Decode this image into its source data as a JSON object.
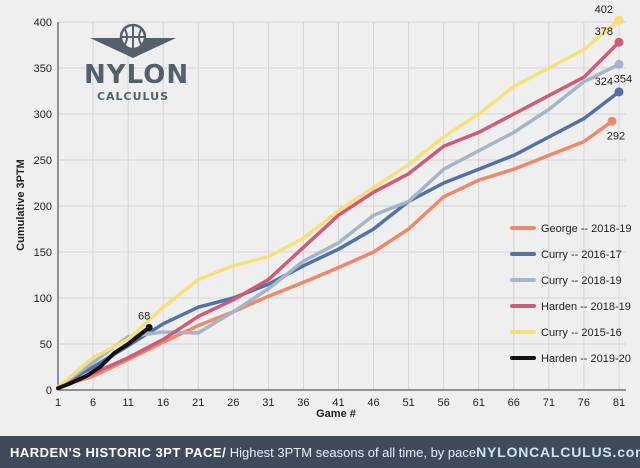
{
  "logo": {
    "line1": "NYLON",
    "line2": "CALCULUS"
  },
  "footer": {
    "headline": "HARDEN'S HISTORIC 3PT PACE",
    "separator": "/",
    "subtitle": "Highest 3PTM seasons of all time, by pace",
    "site": "NYLONCALCULUS.com"
  },
  "chart_data": {
    "type": "line",
    "title": "",
    "xlabel": "Game #",
    "ylabel": "Cumulative 3PTM",
    "xlim": [
      1,
      82
    ],
    "ylim": [
      0,
      400
    ],
    "xticks": [
      1,
      6,
      11,
      16,
      21,
      26,
      31,
      36,
      41,
      46,
      51,
      56,
      61,
      66,
      71,
      76,
      81
    ],
    "yticks": [
      0,
      50,
      100,
      150,
      200,
      250,
      300,
      350,
      400
    ],
    "grid": true,
    "legend_position": "right",
    "series": [
      {
        "name": "George -- 2018-19",
        "color": "#eb8a6b",
        "end_label": "292",
        "x": [
          1,
          6,
          11,
          16,
          21,
          26,
          31,
          36,
          41,
          46,
          51,
          56,
          61,
          66,
          71,
          76,
          80
        ],
        "y": [
          3,
          15,
          33,
          52,
          70,
          85,
          102,
          117,
          133,
          150,
          175,
          210,
          228,
          240,
          255,
          270,
          292
        ]
      },
      {
        "name": "Curry -- 2016-17",
        "color": "#5272a6",
        "end_label": "324",
        "x": [
          1,
          6,
          11,
          16,
          21,
          26,
          31,
          36,
          41,
          46,
          51,
          56,
          61,
          66,
          71,
          76,
          81
        ],
        "y": [
          3,
          25,
          48,
          72,
          90,
          100,
          115,
          135,
          153,
          175,
          205,
          225,
          240,
          255,
          275,
          295,
          324
        ]
      },
      {
        "name": "Curry -- 2018-19",
        "color": "#a6b4c8",
        "end_label": "354",
        "x": [
          1,
          6,
          11,
          16,
          21,
          26,
          31,
          36,
          41,
          46,
          51,
          56,
          61,
          66,
          71,
          76,
          81
        ],
        "y": [
          3,
          30,
          58,
          63,
          62,
          85,
          110,
          140,
          160,
          190,
          205,
          240,
          260,
          280,
          305,
          335,
          354
        ]
      },
      {
        "name": "Harden -- 2018-19",
        "color": "#cf5a7a",
        "end_label": "378",
        "x": [
          1,
          6,
          11,
          16,
          21,
          26,
          31,
          36,
          41,
          46,
          51,
          56,
          61,
          66,
          71,
          76,
          81
        ],
        "y": [
          3,
          18,
          35,
          55,
          80,
          98,
          120,
          155,
          190,
          215,
          235,
          265,
          280,
          300,
          320,
          340,
          378
        ]
      },
      {
        "name": "Curry -- 2015-16",
        "color": "#f7e07a",
        "end_label": "402",
        "x": [
          1,
          6,
          11,
          16,
          21,
          26,
          31,
          36,
          41,
          46,
          51,
          56,
          61,
          66,
          71,
          76,
          81
        ],
        "y": [
          3,
          35,
          55,
          90,
          120,
          135,
          145,
          165,
          195,
          220,
          245,
          275,
          300,
          330,
          350,
          370,
          402
        ]
      },
      {
        "name": "Harden -- 2019-20",
        "color": "#111111",
        "end_label": "68",
        "x": [
          1,
          3,
          5,
          7,
          9,
          11,
          13,
          14
        ],
        "y": [
          2,
          8,
          15,
          25,
          40,
          50,
          62,
          68
        ]
      }
    ]
  }
}
